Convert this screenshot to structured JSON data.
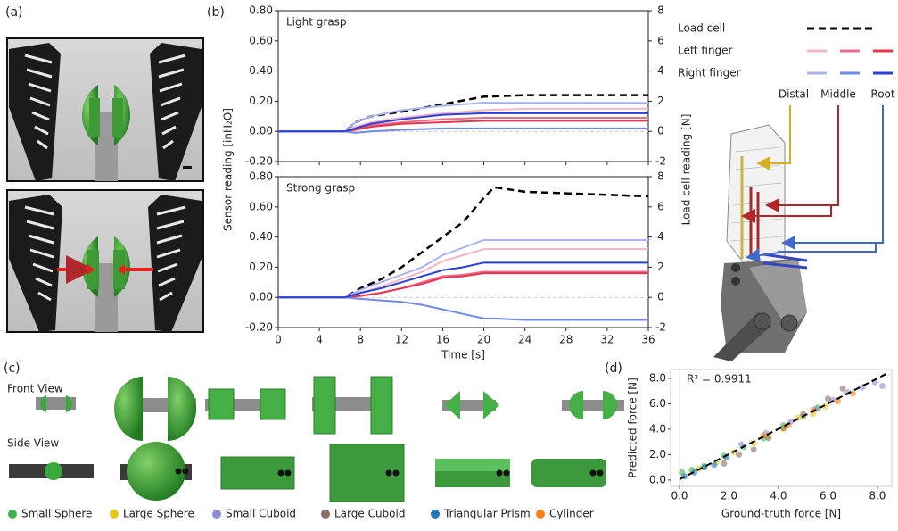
{
  "panel_labels": [
    "(a)",
    "(b)",
    "(c)",
    "(d)"
  ],
  "panel_b_legend": {
    "rows": [
      "Load cell",
      "Left finger",
      "Right finger"
    ],
    "columns": [
      "Distal",
      "Middle",
      "Root"
    ]
  },
  "panel_c": {
    "views": [
      "Front View",
      "Side View"
    ]
  },
  "chart_data": [
    {
      "type": "line",
      "title": "Light grasp",
      "ylabel": "Sensor reading [inH₂O]",
      "y2label": "Load cell reading [N]",
      "x": [
        0,
        4,
        6.5,
        7.5,
        9,
        12,
        16,
        20,
        24,
        28,
        32,
        36
      ],
      "xlim": [
        0,
        36
      ],
      "xticks": [
        0,
        4,
        8,
        12,
        16,
        20,
        24,
        28,
        32,
        36
      ],
      "ylim": [
        -0.2,
        0.8
      ],
      "yticks": [
        {
          "value": -0.2,
          "label": "-0.20"
        },
        {
          "value": 0,
          "label": "0.00"
        },
        {
          "value": 0.2,
          "label": "0.20"
        },
        {
          "value": 0.4,
          "label": "0.40"
        },
        {
          "value": 0.6,
          "label": "0.60"
        },
        {
          "value": 0.8,
          "label": "0.80"
        }
      ],
      "y2lim": [
        -2,
        8
      ],
      "y2ticks": [
        -2,
        0,
        2,
        4,
        6,
        8
      ],
      "zero_line": true,
      "series": [
        {
          "color": "#000000",
          "dashed": true,
          "axis": "y2",
          "values": [
            0,
            0,
            0,
            0.6,
            1.0,
            1.3,
            1.8,
            2.3,
            2.4,
            2.4,
            2.4,
            2.4
          ]
        },
        {
          "color": "#f4b6c8",
          "values": [
            0,
            0,
            0,
            0.03,
            0.06,
            0.09,
            0.12,
            0.14,
            0.15,
            0.15,
            0.15,
            0.15
          ]
        },
        {
          "color": "#ec6d8a",
          "values": [
            0,
            0,
            0,
            0.02,
            0.04,
            0.06,
            0.08,
            0.09,
            0.09,
            0.09,
            0.09,
            0.09
          ]
        },
        {
          "color": "#e8344f",
          "values": [
            0,
            0,
            0,
            0.01,
            0.03,
            0.05,
            0.06,
            0.07,
            0.07,
            0.07,
            0.07,
            0.07
          ]
        },
        {
          "color": "#a9b4f0",
          "values": [
            0,
            0,
            0,
            0.06,
            0.1,
            0.14,
            0.17,
            0.19,
            0.19,
            0.19,
            0.19,
            0.19
          ]
        },
        {
          "color": "#6f8ae6",
          "values": [
            0,
            0,
            0,
            -0.01,
            0.0,
            0.01,
            0.02,
            0.02,
            0.02,
            0.02,
            0.02,
            0.02
          ]
        },
        {
          "color": "#2a3fd6",
          "values": [
            0,
            0,
            0,
            0.02,
            0.05,
            0.08,
            0.11,
            0.12,
            0.12,
            0.12,
            0.12,
            0.12
          ]
        }
      ]
    },
    {
      "type": "line",
      "title": "Strong grasp",
      "xlabel": "Time [s]",
      "x": [
        0,
        4,
        6.5,
        8,
        10,
        12,
        14,
        16,
        18,
        20,
        21,
        24,
        28,
        32,
        36
      ],
      "xlim": [
        0,
        36
      ],
      "xticks": [
        0,
        4,
        8,
        12,
        16,
        20,
        24,
        28,
        32,
        36
      ],
      "ylim": [
        -0.2,
        0.8
      ],
      "yticks": [
        {
          "value": -0.2,
          "label": "-0.20"
        },
        {
          "value": 0,
          "label": "0.00"
        },
        {
          "value": 0.2,
          "label": "0.20"
        },
        {
          "value": 0.4,
          "label": "0.40"
        },
        {
          "value": 0.6,
          "label": "0.60"
        },
        {
          "value": 0.8,
          "label": "0.80"
        }
      ],
      "y2lim": [
        -2,
        8
      ],
      "y2ticks": [
        -2,
        0,
        2,
        4,
        6,
        8
      ],
      "zero_line": true,
      "series": [
        {
          "color": "#000000",
          "dashed": true,
          "axis": "y2",
          "values": [
            0,
            0,
            0,
            0.6,
            1.2,
            2.0,
            3.0,
            4.0,
            5.0,
            6.6,
            7.3,
            7.0,
            6.9,
            6.8,
            6.7
          ]
        },
        {
          "color": "#f4b6c8",
          "values": [
            0,
            0,
            0,
            0.03,
            0.07,
            0.12,
            0.17,
            0.24,
            0.28,
            0.32,
            0.32,
            0.32,
            0.32,
            0.32,
            0.32
          ]
        },
        {
          "color": "#ec6d8a",
          "values": [
            0,
            0,
            0,
            0.01,
            0.03,
            0.06,
            0.1,
            0.14,
            0.15,
            0.17,
            0.17,
            0.17,
            0.17,
            0.17,
            0.17
          ]
        },
        {
          "color": "#e8344f",
          "values": [
            0,
            0,
            0,
            0.01,
            0.03,
            0.06,
            0.09,
            0.13,
            0.14,
            0.16,
            0.16,
            0.16,
            0.16,
            0.16,
            0.16
          ]
        },
        {
          "color": "#a9b4f0",
          "values": [
            0,
            0,
            0,
            0.05,
            0.1,
            0.15,
            0.2,
            0.28,
            0.33,
            0.38,
            0.38,
            0.38,
            0.38,
            0.38,
            0.38
          ]
        },
        {
          "color": "#6f8ae6",
          "values": [
            0,
            0,
            0,
            -0.01,
            -0.02,
            -0.03,
            -0.05,
            -0.08,
            -0.11,
            -0.14,
            -0.14,
            -0.15,
            -0.15,
            -0.15,
            -0.15
          ]
        },
        {
          "color": "#2a3fd6",
          "values": [
            0,
            0,
            0,
            0.03,
            0.06,
            0.1,
            0.14,
            0.18,
            0.2,
            0.23,
            0.23,
            0.23,
            0.23,
            0.23,
            0.23
          ]
        }
      ]
    },
    {
      "type": "scatter",
      "annotation": "R² = 0.9911",
      "xlabel": "Ground-truth force [N]",
      "ylabel": "Predicted force [N]",
      "xlim": [
        -0.36,
        8.58
      ],
      "ylim": [
        -0.5,
        8.7
      ],
      "xticks": [
        {
          "value": 0,
          "label": "0.0"
        },
        {
          "value": 2,
          "label": "2.0"
        },
        {
          "value": 4,
          "label": "4.0"
        },
        {
          "value": 6,
          "label": "6.0"
        },
        {
          "value": 8,
          "label": "8.0"
        }
      ],
      "yticks": [
        {
          "value": 0,
          "label": "0.0"
        },
        {
          "value": 2,
          "label": "2.0"
        },
        {
          "value": 4,
          "label": "4.0"
        },
        {
          "value": 6,
          "label": "6.0"
        },
        {
          "value": 8,
          "label": "8.0"
        }
      ],
      "fit": {
        "x": [
          0,
          8.4
        ],
        "values": [
          0.05,
          8.4
        ]
      },
      "series": [
        {
          "name": "Small Sphere",
          "color": "#3cb44b",
          "x": [
            0.1,
            0.5,
            1.0,
            1.8,
            2.6,
            3.4,
            4.2,
            5.0,
            5.6
          ],
          "values": [
            0.6,
            0.8,
            1.1,
            1.9,
            2.6,
            3.3,
            4.3,
            5.0,
            5.7
          ]
        },
        {
          "name": "Large Sphere",
          "color": "#e6c619",
          "x": [
            0.8,
            1.5,
            2.2,
            3.0,
            3.6,
            4.2,
            4.8,
            5.4,
            5.9
          ],
          "values": [
            0.9,
            1.4,
            2.2,
            2.9,
            3.5,
            4.0,
            4.9,
            5.2,
            5.8
          ]
        },
        {
          "name": "Small Cuboid",
          "color": "#8c8fd6",
          "x": [
            2.5,
            3.5,
            4.5,
            5.5,
            6.2,
            6.8,
            7.4,
            7.9,
            8.2
          ],
          "values": [
            2.8,
            3.7,
            4.6,
            5.6,
            6.3,
            6.9,
            7.3,
            7.7,
            7.4
          ]
        },
        {
          "name": "Large Cuboid",
          "color": "#8c6d62",
          "x": [
            1.8,
            2.4,
            3.0,
            3.6,
            4.2,
            5.0,
            6.0,
            6.6
          ],
          "values": [
            1.3,
            2.0,
            2.4,
            3.3,
            4.1,
            5.2,
            6.4,
            7.2
          ]
        },
        {
          "name": "Triangular Prism",
          "color": "#1f77b4",
          "x": [
            0.2,
            0.6,
            1.0,
            1.4,
            1.9
          ],
          "values": [
            0.3,
            0.6,
            1.0,
            1.2,
            1.8
          ]
        },
        {
          "name": "Cylinder",
          "color": "#ff7f0e",
          "x": [
            3.4,
            4.4,
            5.4,
            6.4,
            7.0
          ],
          "values": [
            3.5,
            4.3,
            5.5,
            6.2,
            6.8
          ]
        }
      ]
    }
  ]
}
